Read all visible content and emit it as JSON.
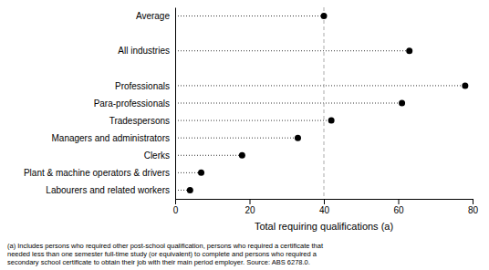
{
  "chart_data": {
    "type": "dot",
    "orientation": "horizontal",
    "marker": "circle",
    "categories": [
      "Labourers and related workers",
      "Plant & machine operators & drivers",
      "Clerks",
      "Managers and administrators",
      "Tradespersons",
      "Para-professionals",
      "Professionals",
      null,
      "All industries",
      null,
      "Average"
    ],
    "values": [
      4,
      7,
      18,
      33,
      42,
      61,
      78,
      null,
      63,
      null,
      40
    ],
    "color": "#000000",
    "x_label": "Total requiring qualifications (a)",
    "xlim": [
      0,
      80
    ],
    "xticks": [
      0,
      20,
      40,
      60,
      80
    ],
    "grid": false,
    "reference_lines": [
      {
        "value": 40,
        "color": "#aaaaaa",
        "line_style": "dashed"
      }
    ],
    "footnote": "(a) Includes persons who required other post-school qualification, persons who required a certificate that\nneeded less than one semester full-time study (or equivalent) to complete and persons who required a\nsecondary school certificate to obtain their job with their main period employer. Source: ABS 6278.0."
  }
}
